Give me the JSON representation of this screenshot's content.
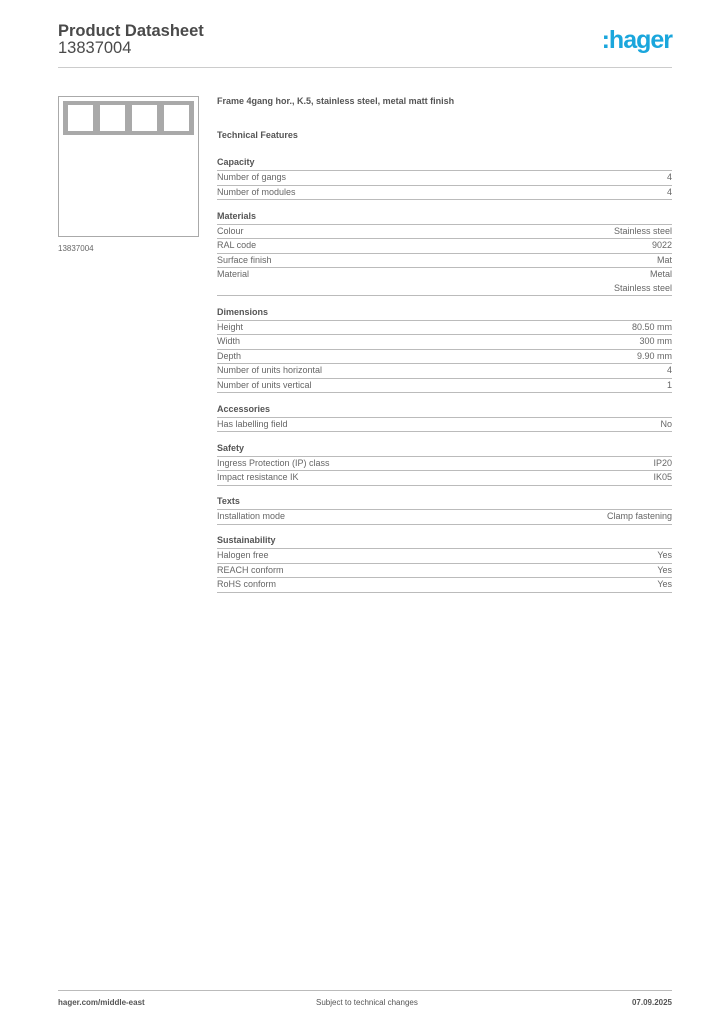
{
  "header": {
    "title": "Product Datasheet",
    "code": "13837004",
    "logo": ":hager",
    "brand_color": "#1aa6dc"
  },
  "product": {
    "image_caption": "13837004",
    "description": "Frame 4gang hor., K.5, stainless steel, metal matt finish",
    "features_title": "Technical Features"
  },
  "sections": [
    {
      "title": "Capacity",
      "rows": [
        {
          "label": "Number of gangs",
          "value": "4"
        },
        {
          "label": "Number of modules",
          "value": "4"
        }
      ]
    },
    {
      "title": "Materials",
      "rows": [
        {
          "label": "Colour",
          "value": "Stainless steel"
        },
        {
          "label": "RAL code",
          "value": "9022"
        },
        {
          "label": "Surface finish",
          "value": "Mat"
        },
        {
          "label": "Material",
          "value": "Metal\nStainless steel"
        }
      ]
    },
    {
      "title": "Dimensions",
      "rows": [
        {
          "label": "Height",
          "value": "80.50 mm"
        },
        {
          "label": "Width",
          "value": "300 mm"
        },
        {
          "label": "Depth",
          "value": "9.90 mm"
        },
        {
          "label": "Number of units horizontal",
          "value": "4"
        },
        {
          "label": "Number of units vertical",
          "value": "1"
        }
      ]
    },
    {
      "title": "Accessories",
      "rows": [
        {
          "label": "Has labelling field",
          "value": "No"
        }
      ]
    },
    {
      "title": "Safety",
      "rows": [
        {
          "label": "Ingress Protection (IP) class",
          "value": "IP20"
        },
        {
          "label": "Impact resistance IK",
          "value": "IK05"
        }
      ]
    },
    {
      "title": "Texts",
      "rows": [
        {
          "label": "Installation mode",
          "value": "Clamp fastening"
        }
      ]
    },
    {
      "title": "Sustainability",
      "rows": [
        {
          "label": "Halogen free",
          "value": "Yes"
        },
        {
          "label": "REACH conform",
          "value": "Yes"
        },
        {
          "label": "RoHS conform",
          "value": "Yes"
        }
      ]
    }
  ],
  "footer": {
    "website": "hager.com/middle-east",
    "note": "Subject to technical changes",
    "date": "07.09.2025"
  }
}
